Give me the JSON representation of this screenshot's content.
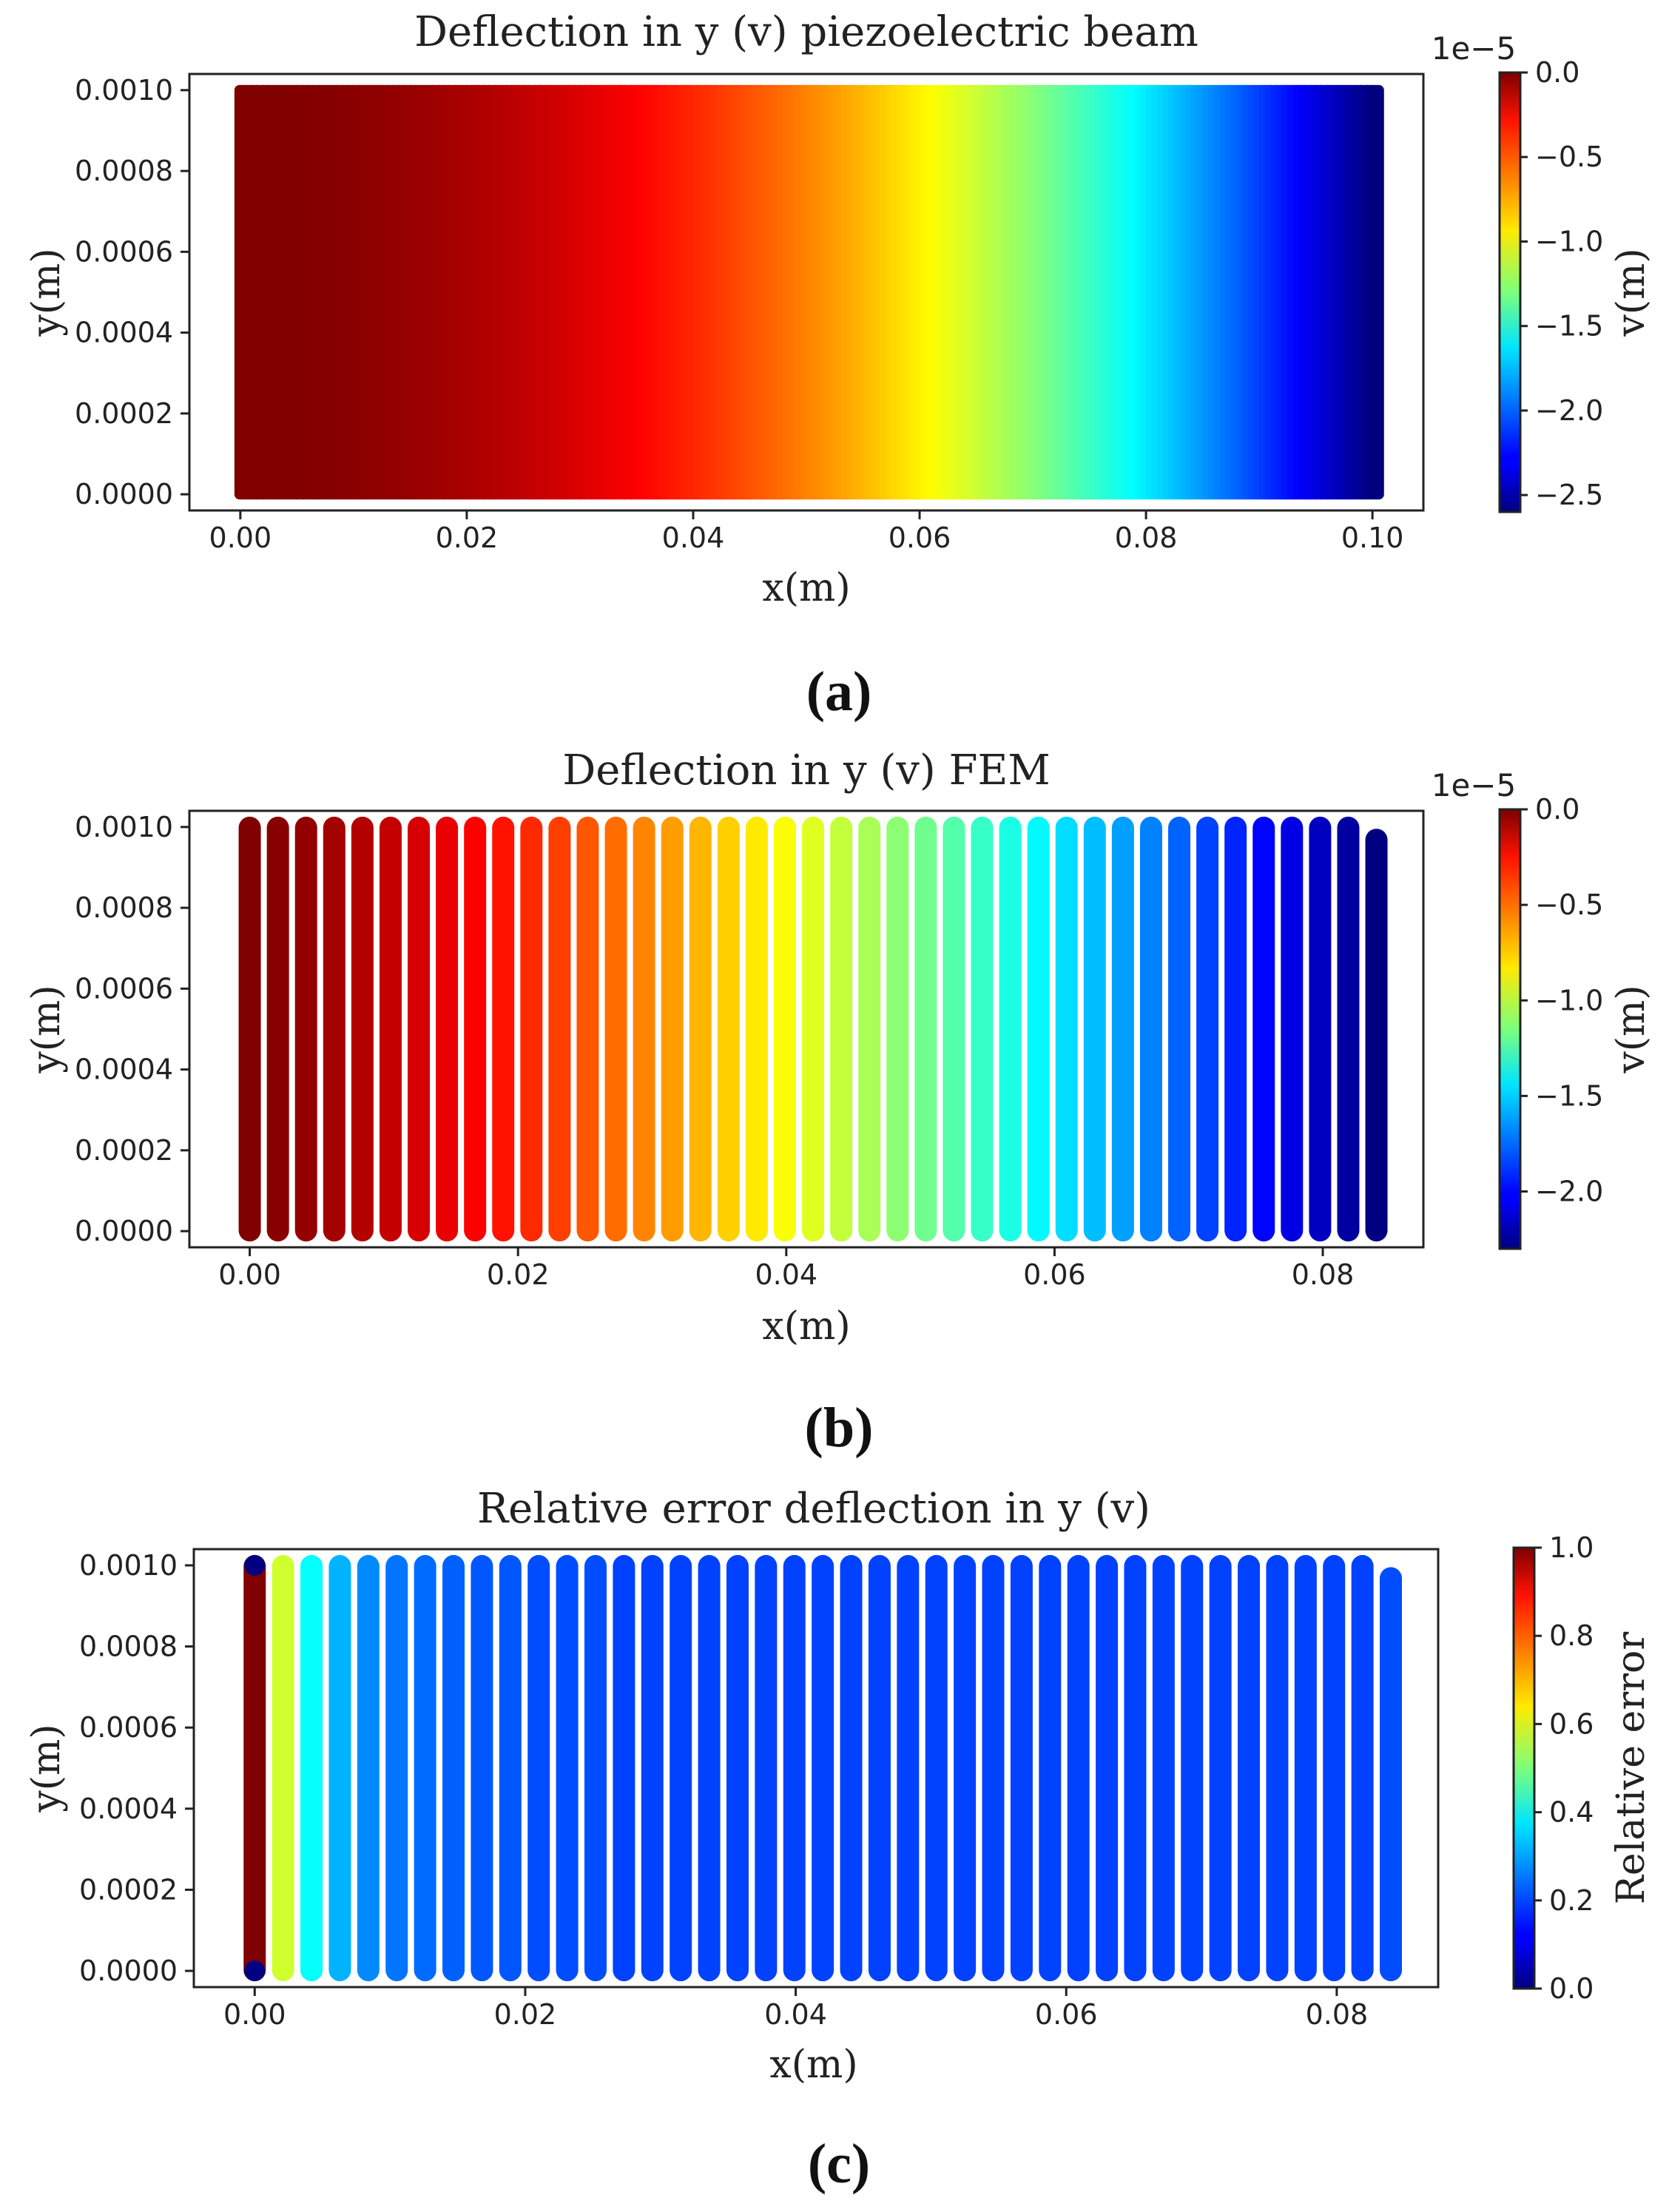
{
  "figure": {
    "panels": [
      {
        "label": "(a)"
      },
      {
        "label": "(b)"
      },
      {
        "label": "(c)"
      }
    ]
  },
  "chart_data": [
    {
      "type": "scatter",
      "title": "Deflection in y (v) piezoelectric beam",
      "xlabel": "x(m)",
      "ylabel": "y(m)",
      "xlim": [
        -0.0045,
        0.1045
      ],
      "ylim": [
        -4e-05,
        0.00104
      ],
      "xticks": [
        "0.00",
        "0.02",
        "0.04",
        "0.06",
        "0.08",
        "0.10"
      ],
      "xtick_values": [
        0,
        0.02,
        0.04,
        0.06,
        0.08,
        0.1
      ],
      "yticks": [
        "0.0000",
        "0.0002",
        "0.0004",
        "0.0006",
        "0.0008",
        "0.0010"
      ],
      "ytick_values": [
        0,
        0.0002,
        0.0004,
        0.0006,
        0.0008,
        0.001
      ],
      "points": {
        "x_range": [
          0,
          0.1
        ],
        "y_range": [
          0,
          0.001
        ],
        "columns": 201,
        "color_values": "v = -2.6e-5 * (x / 0.1)^2"
      },
      "colorbar": {
        "label": "v(m)",
        "offset_text": "1e−5",
        "range": [
          -2.6,
          0.0
        ],
        "ticks": [
          "0.0",
          "−0.5",
          "−1.0",
          "−1.5",
          "−2.0",
          "−2.5"
        ],
        "tick_values": [
          0.0,
          -0.5,
          -1.0,
          -1.5,
          -2.0,
          -2.5
        ]
      },
      "colormap": "jet",
      "grid": false
    },
    {
      "type": "scatter",
      "title": "Deflection in y (v) FEM",
      "xlabel": "x(m)",
      "ylabel": "y(m)",
      "xlim": [
        -0.0045,
        0.0875
      ],
      "ylim": [
        -4e-05,
        0.00104
      ],
      "xticks": [
        "0.00",
        "0.02",
        "0.04",
        "0.06",
        "0.08"
      ],
      "xtick_values": [
        0,
        0.02,
        0.04,
        0.06,
        0.08
      ],
      "yticks": [
        "0.0000",
        "0.0002",
        "0.0004",
        "0.0006",
        "0.0008",
        "0.0010"
      ],
      "ytick_values": [
        0,
        0.0002,
        0.0004,
        0.0006,
        0.0008,
        0.001
      ],
      "columns": {
        "x_start": 0.0,
        "x_step": 0.0021,
        "count": 41,
        "y_range": [
          0,
          0.001
        ],
        "last_column_top": 0.00097,
        "color_values": "v = -2.3e-5 * (x / 0.084)^1.3"
      },
      "colorbar": {
        "label": "v(m)",
        "offset_text": "1e−5",
        "range": [
          -2.3,
          0.0
        ],
        "ticks": [
          "0.0",
          "−0.5",
          "−1.0",
          "−1.5",
          "−2.0"
        ],
        "tick_values": [
          0.0,
          -0.5,
          -1.0,
          -1.5,
          -2.0
        ]
      },
      "colormap": "jet",
      "grid": false
    },
    {
      "type": "scatter",
      "title": "Relative error deflection in y (v)",
      "xlabel": "x(m)",
      "ylabel": "y(m)",
      "xlim": [
        -0.0045,
        0.0875
      ],
      "ylim": [
        -4e-05,
        0.00104
      ],
      "xticks": [
        "0.00",
        "0.02",
        "0.04",
        "0.06",
        "0.08"
      ],
      "xtick_values": [
        0,
        0.02,
        0.04,
        0.06,
        0.08
      ],
      "yticks": [
        "0.0000",
        "0.0002",
        "0.0004",
        "0.0006",
        "0.0008",
        "0.0010"
      ],
      "ytick_values": [
        0,
        0.0002,
        0.0004,
        0.0006,
        0.0008,
        0.001
      ],
      "columns": {
        "x_start": 0.0,
        "x_step": 0.0021,
        "count": 41,
        "y_range": [
          0,
          0.001
        ],
        "last_column_top": 0.00097,
        "relative_error": [
          1.0,
          0.58,
          0.38,
          0.3,
          0.26,
          0.24,
          0.23,
          0.22,
          0.21,
          0.21,
          0.2,
          0.2,
          0.2,
          0.19,
          0.19,
          0.19,
          0.19,
          0.19,
          0.19,
          0.19,
          0.19,
          0.19,
          0.19,
          0.19,
          0.19,
          0.19,
          0.19,
          0.19,
          0.19,
          0.19,
          0.19,
          0.19,
          0.19,
          0.19,
          0.19,
          0.19,
          0.19,
          0.19,
          0.19,
          0.19,
          0.2
        ],
        "first_column_end_points": 0.0
      },
      "colorbar": {
        "label": "Relative error",
        "offset_text": "",
        "range": [
          0.0,
          1.0
        ],
        "ticks": [
          "1.0",
          "0.8",
          "0.6",
          "0.4",
          "0.2",
          "0.0"
        ],
        "tick_values": [
          1.0,
          0.8,
          0.6,
          0.4,
          0.2,
          0.0
        ]
      },
      "colormap": "jet",
      "grid": false
    }
  ]
}
